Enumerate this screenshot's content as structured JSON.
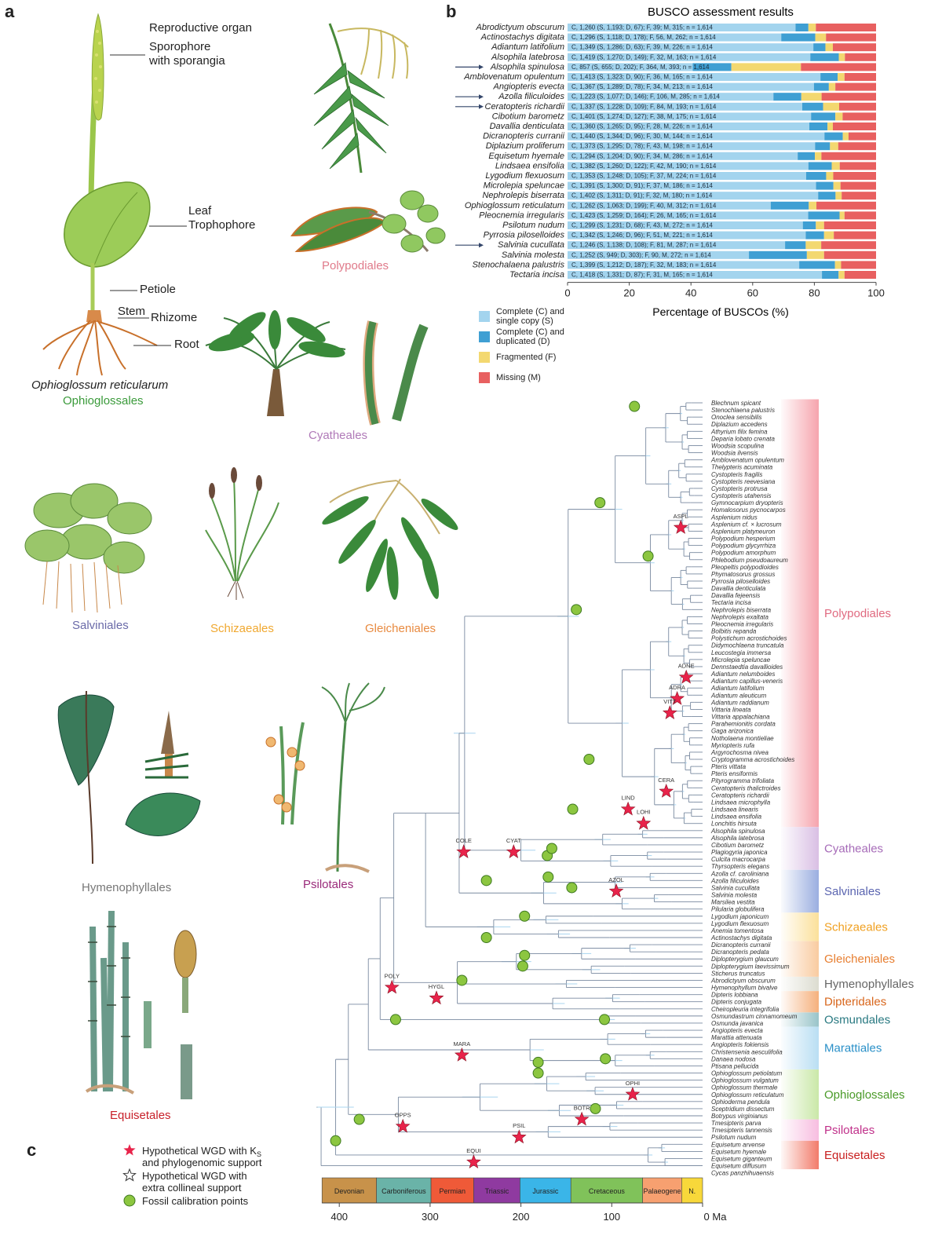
{
  "panels": {
    "a": "a",
    "b": "b",
    "c": "c"
  },
  "panel_a": {
    "annotations": {
      "reproductive": "Reproductive organ",
      "sporophore": "Sporophore",
      "sporangia": "with sporangia",
      "leaf": "Leaf",
      "trophophore": "Trophophore",
      "petiole": "Petiole",
      "stem": "Stem",
      "rhizome": "Rhizome",
      "root": "Root"
    },
    "species_name": "Ophioglossum reticularum",
    "orders": [
      {
        "name": "Ophioglossales",
        "color": "#3a9a3a"
      },
      {
        "name": "Polypodiales",
        "color": "#e07a8a"
      },
      {
        "name": "Cyatheales",
        "color": "#b07ab8"
      },
      {
        "name": "Salviniales",
        "color": "#6a6aa8"
      },
      {
        "name": "Schizaeales",
        "color": "#f0a830"
      },
      {
        "name": "Gleicheniales",
        "color": "#e88a40"
      },
      {
        "name": "Hymenophyllales",
        "color": "#777777"
      },
      {
        "name": "Psilotales",
        "color": "#9a2a7a"
      },
      {
        "name": "Equisetales",
        "color": "#c8202a"
      }
    ]
  },
  "chart_data": {
    "type": "bar",
    "orientation": "horizontal-stacked",
    "title": "BUSCO assessment results",
    "xlabel": "Percentage of BUSCOs (%)",
    "xlim": [
      0,
      100
    ],
    "xticks": [
      "0",
      "20",
      "40",
      "60",
      "80",
      "100"
    ],
    "total": 1614,
    "series": [
      {
        "name": "Complete (C) and single copy (S)",
        "color": "#a3d4ee"
      },
      {
        "name": "Complete (C) and duplicated (D)",
        "color": "#3f9fd3"
      },
      {
        "name": "Fragmented (F)",
        "color": "#f3d870"
      },
      {
        "name": "Missing (M)",
        "color": "#e86060"
      }
    ],
    "legend": [
      [
        "Complete (C) and",
        "single copy (S)"
      ],
      [
        "Complete (C) and",
        "duplicated (D)"
      ],
      [
        "Fragmented (F)",
        ""
      ],
      [
        "Missing (M)",
        ""
      ]
    ],
    "rows": [
      {
        "species": "Abrodictyum obscurum",
        "S": 1193,
        "D": 67,
        "F": 39,
        "M": 315,
        "label": "C, 1,260 (S, 1,193; D, 67); F, 39; M, 315; n = 1,614",
        "arrow": false
      },
      {
        "species": "Actinostachys digitata",
        "S": 1118,
        "D": 178,
        "F": 56,
        "M": 262,
        "label": "C, 1,296 (S, 1,118; D, 178); F, 56, M, 262; n = 1,614",
        "arrow": false
      },
      {
        "species": "Adiantum latifolium",
        "S": 1286,
        "D": 63,
        "F": 39,
        "M": 226,
        "label": "C, 1,349 (S, 1,286; D, 63); F, 39, M, 226; n = 1,614",
        "arrow": false
      },
      {
        "species": "Alsophila latebrosa",
        "S": 1270,
        "D": 149,
        "F": 32,
        "M": 163,
        "label": "C, 1,419 (S, 1,270; D, 149); F, 32, M, 163; n = 1,614",
        "arrow": false
      },
      {
        "species": "Alsophila spinulosa",
        "S": 655,
        "D": 202,
        "F": 364,
        "M": 393,
        "label": "C, 857 (S, 655; D, 202); F, 364, M, 393; n = 1,614",
        "arrow": true
      },
      {
        "species": "Amblovenatum opulentum",
        "S": 1323,
        "D": 90,
        "F": 36,
        "M": 165,
        "label": "C, 1,413 (S, 1,323; D, 90); F, 36, M, 165; n = 1,614",
        "arrow": false
      },
      {
        "species": "Angiopteris evecta",
        "S": 1289,
        "D": 78,
        "F": 34,
        "M": 213,
        "label": "C, 1,367 (S, 1,289; D, 78); F, 34, M, 213; n = 1,614",
        "arrow": false
      },
      {
        "species": "Azolla filiculoides",
        "S": 1077,
        "D": 146,
        "F": 106,
        "M": 285,
        "label": "C, 1,223 (S, 1,077; D, 146); F, 106, M, 285; n = 1,614",
        "arrow": true
      },
      {
        "species": "Ceratopteris richardii",
        "S": 1228,
        "D": 109,
        "F": 84,
        "M": 193,
        "label": "C, 1,337 (S, 1,228; D, 109); F, 84, M, 193; n = 1,614",
        "arrow": true
      },
      {
        "species": "Cibotium barometz",
        "S": 1274,
        "D": 127,
        "F": 38,
        "M": 175,
        "label": "C, 1,401 (S, 1,274; D, 127); F, 38, M, 175; n = 1,614",
        "arrow": false
      },
      {
        "species": "Davallia denticulata",
        "S": 1265,
        "D": 95,
        "F": 28,
        "M": 226,
        "label": "C, 1,360 (S, 1,265; D, 95); F, 28, M, 226; n = 1,614",
        "arrow": false
      },
      {
        "species": "Dicranopteris curranii",
        "S": 1344,
        "D": 96,
        "F": 30,
        "M": 144,
        "label": "C, 1,440 (S, 1,344; D, 96); F, 30, M, 144; n = 1,614",
        "arrow": false
      },
      {
        "species": "Diplazium proliferum",
        "S": 1295,
        "D": 78,
        "F": 43,
        "M": 198,
        "label": "C, 1,373 (S, 1,295; D, 78); F, 43, M, 198; n = 1,614",
        "arrow": false
      },
      {
        "species": "Equisetum hyemale",
        "S": 1204,
        "D": 90,
        "F": 34,
        "M": 286,
        "label": "C, 1,294 (S, 1,204; D, 90); F, 34, M, 286; n = 1,614",
        "arrow": false
      },
      {
        "species": "Lindsaea ensifolia",
        "S": 1260,
        "D": 122,
        "F": 42,
        "M": 190,
        "label": "C, 1,382 (S, 1,260; D, 122); F, 42, M, 190; n = 1,614",
        "arrow": false
      },
      {
        "species": "Lygodium flexuosum",
        "S": 1248,
        "D": 105,
        "F": 37,
        "M": 224,
        "label": "C, 1,353 (S, 1,248; D, 105); F, 37, M, 224; n = 1,614",
        "arrow": false
      },
      {
        "species": "Microlepia speluncae",
        "S": 1300,
        "D": 91,
        "F": 37,
        "M": 186,
        "label": "C, 1,391 (S, 1,300; D, 91); F, 37, M, 186; n = 1,614",
        "arrow": false
      },
      {
        "species": "Nephrolepis biserrata",
        "S": 1311,
        "D": 91,
        "F": 32,
        "M": 180,
        "label": "C, 1,402 (S, 1,311; D, 91); F, 32, M, 180; n = 1,614",
        "arrow": false
      },
      {
        "species": "Ophioglossum reticulatum",
        "S": 1063,
        "D": 199,
        "F": 40,
        "M": 312,
        "label": "C, 1,262 (S, 1,063; D, 199); F, 40, M, 312; n = 1,614",
        "arrow": false
      },
      {
        "species": "Pleocnemia irregularis",
        "S": 1259,
        "D": 164,
        "F": 26,
        "M": 165,
        "label": "C, 1,423 (S, 1,259; D, 164); F, 26, M, 165; n = 1,614",
        "arrow": false
      },
      {
        "species": "Psilotum nudum",
        "S": 1231,
        "D": 68,
        "F": 43,
        "M": 272,
        "label": "C, 1,299 (S, 1,231; D, 68); F, 43, M, 272; n = 1,614",
        "arrow": false
      },
      {
        "species": "Pyrrosia piloselloides",
        "S": 1246,
        "D": 96,
        "F": 51,
        "M": 221,
        "label": "C, 1,342 (S, 1,246; D, 96); F, 51, M, 221; n = 1,614",
        "arrow": false
      },
      {
        "species": "Salvinia cucullata",
        "S": 1138,
        "D": 108,
        "F": 81,
        "M": 287,
        "label": "C, 1,246 (S, 1,138; D, 108); F, 81, M, 287; n = 1,614",
        "arrow": true
      },
      {
        "species": "Salvinia molesta",
        "S": 949,
        "D": 303,
        "F": 90,
        "M": 272,
        "label": "C, 1,252 (S, 949; D, 303); F, 90, M, 272; n = 1,614",
        "arrow": false
      },
      {
        "species": "Stenochalaena palustris",
        "S": 1212,
        "D": 187,
        "F": 32,
        "M": 183,
        "label": "C, 1,399 (S, 1,212; D, 187); F, 32, M, 183; n = 1,614",
        "arrow": false
      },
      {
        "species": "Tectaria incisa",
        "S": 1331,
        "D": 87,
        "F": 31,
        "M": 165,
        "label": "C, 1,418 (S, 1,331; D, 87); F, 31, M, 165; n = 1,614",
        "arrow": false
      }
    ]
  },
  "panel_c": {
    "taxa": [
      "Blechnum spicant",
      "Stenochlaena palustris",
      "Onoclea sensibilis",
      "Diplazium accedens",
      "Athyrium filix femina",
      "Deparia lobato crenata",
      "Woodsia scopulina",
      "Woodsia ilvensis",
      "Amblovenatum opulentum",
      "Thelypteris acuminata",
      "Cystopteris fragilis",
      "Cystopteris reevesiana",
      "Cystopteris protrusa",
      "Cystopteris utahensis",
      "Gymnocarpium dryopteris",
      "Homalosorus pycnocarpos",
      "Asplenium nidus",
      "Asplenium cf. × lucrosum",
      "Asplenium platyneuron",
      "Polypodium hesperium",
      "Polypodium glycyrrhiza",
      "Polypodium amorphum",
      "Phlebodium pseudoaureum",
      "Pleopeltis polypodioides",
      "Phymatosorus grossus",
      "Pyrrosia piloselloides",
      "Davallia denticulata",
      "Davallia fejeensis",
      "Tectaria incisa",
      "Nephrolepis biserrata",
      "Nephrolepis exaltata",
      "Pleocnemia irregularis",
      "Bolbitis repanda",
      "Polystichum acrostichoides",
      "Didymochlaena truncatula",
      "Leucostegia immersa",
      "Microlepia speluncae",
      "Dennstaedtia davallioides",
      "Adiantum nelumboides",
      "Adiantum capillus-veneris",
      "Adiantum latifolium",
      "Adiantum aleuticum",
      "Adiantum raddianum",
      "Vittaria lineata",
      "Vittaria appalachiana",
      "Parahemionitis cordata",
      "Gaga arizonica",
      "Notholaena montieliae",
      "Myriopteris rufa",
      "Argyrochosma nivea",
      "Cryptogramma acrostichoides",
      "Pteris vittata",
      "Pteris ensiformis",
      "Pityrogramma trifoliata",
      "Ceratopteris thalictroides",
      "Ceratopteris richardii",
      "Lindsaea microphylla",
      "Lindsaea linearis",
      "Lindsaea ensifolia",
      "Lonchitis hirsuta",
      "Alsophila spinulosa",
      "Alsophila latebrosa",
      "Cibotium barometz",
      "Plagiogyria japonica",
      "Culcita macrocarpa",
      "Thyrsopteris elegans",
      "Azolla cf. caroliniana",
      "Azolla filiculoides",
      "Salvinia cucullata",
      "Salvinia molesta",
      "Marsilea vestita",
      "Pilularia globulifera",
      "Lygodium japonicum",
      "Lygodium flexuosum",
      "Anemia tomentosa",
      "Actinostachys digitata",
      "Dicranopteris curranii",
      "Dicranopteris pedata",
      "Diplopterygium glaucum",
      "Diplopterygium laevissimum",
      "Sticherus truncatus",
      "Abrodictyum obscurum",
      "Hymenophyllum bivalve",
      "Dipteris lobbiana",
      "Dipteris conjugata",
      "Cheiropleuria integrifolia",
      "Osmundastrum cinnamomeum",
      "Osmunda javanica",
      "Angiopteris evecta",
      "Marattia attenuata",
      "Angiopteris fokiensis",
      "Christensenia aesculifolia",
      "Danaea nodosa",
      "Ptisana pellucida",
      "Ophioglossum petiolatum",
      "Ophioglossum vulgatum",
      "Ophioglossum thermale",
      "Ophioglossum reticulatum",
      "Ophioderma pendula",
      "Sceptridium dissectum",
      "Botrypus virginianus",
      "Tmesipteris parva",
      "Tmesipteris tannensis",
      "Psilotum nudum",
      "Equisetum arvense",
      "Equisetum hyemale",
      "Equisetum giganteum",
      "Equisetum diffusum",
      "Cycas panzhihuaensis"
    ],
    "clades": [
      {
        "name": "Polypodiales",
        "from": 0,
        "to": 59,
        "color": "#f6a4ad",
        "text": "#e06a80"
      },
      {
        "name": "Cyatheales",
        "from": 60,
        "to": 65,
        "color": "#d9bfe4",
        "text": "#a66bb8"
      },
      {
        "name": "Salviniales",
        "from": 66,
        "to": 71,
        "color": "#9aaee0",
        "text": "#5a64b0"
      },
      {
        "name": "Schizaeales",
        "from": 72,
        "to": 75,
        "color": "#fbe09a",
        "text": "#f0a020"
      },
      {
        "name": "Gleicheniales",
        "from": 76,
        "to": 80,
        "color": "#f9cba0",
        "text": "#e77e30"
      },
      {
        "name": "Hymenophyllales",
        "from": 81,
        "to": 82,
        "color": "#dcdcd0",
        "text": "#666666"
      },
      {
        "name": "Dipteridales",
        "from": 83,
        "to": 85,
        "color": "#f5b07c",
        "text": "#d8661c"
      },
      {
        "name": "Osmundales",
        "from": 86,
        "to": 87,
        "color": "#99c4c9",
        "text": "#2a7a82"
      },
      {
        "name": "Marattiales",
        "from": 88,
        "to": 93,
        "color": "#b9def3",
        "text": "#2a90c8"
      },
      {
        "name": "Ophioglossales",
        "from": 94,
        "to": 100,
        "color": "#cae8a8",
        "text": "#4a9a28"
      },
      {
        "name": "Psilotales",
        "from": 101,
        "to": 103,
        "color": "#f7bde0",
        "text": "#c0308a"
      },
      {
        "name": "Equisetales",
        "from": 104,
        "to": 107,
        "color": "#f27b6a",
        "text": "#c82020"
      }
    ],
    "wgd": [
      {
        "label": "ASPL",
        "age": 24,
        "taxon": 17.5
      },
      {
        "label": "ADNE",
        "age": 18,
        "taxon": 38.5
      },
      {
        "label": "ADRA",
        "age": 28,
        "taxon": 41.5
      },
      {
        "label": "VITT",
        "age": 36,
        "taxon": 43.5
      },
      {
        "label": "CERA",
        "age": 40,
        "taxon": 54.5
      },
      {
        "label": "LIND",
        "age": 82,
        "taxon": 57
      },
      {
        "label": "LOHI",
        "age": 65,
        "taxon": 59
      },
      {
        "label": "COLE",
        "age": 263,
        "taxon": 63
      },
      {
        "label": "CYAT",
        "age": 208,
        "taxon": 63
      },
      {
        "label": "AZOL",
        "age": 95,
        "taxon": 68.5
      },
      {
        "label": "POLY",
        "age": 342,
        "taxon": 82
      },
      {
        "label": "HYGL",
        "age": 293,
        "taxon": 83.5
      },
      {
        "label": "MARA",
        "age": 265,
        "taxon": 91.5
      },
      {
        "label": "OPHI",
        "age": 77,
        "taxon": 97
      },
      {
        "label": "BOTR",
        "age": 133,
        "taxon": 100.5
      },
      {
        "label": "OPPS",
        "age": 330,
        "taxon": 101.5
      },
      {
        "label": "PSIL",
        "age": 202,
        "taxon": 103
      },
      {
        "label": "EQUI",
        "age": 252,
        "taxon": 106.5
      }
    ],
    "fossils": [
      {
        "age": 404,
        "taxon": 103.5
      },
      {
        "age": 378,
        "taxon": 100.5
      },
      {
        "age": 338,
        "taxon": 86.5
      },
      {
        "age": 265,
        "taxon": 81
      },
      {
        "age": 238,
        "taxon": 75
      },
      {
        "age": 238,
        "taxon": 67
      },
      {
        "age": 198,
        "taxon": 79
      },
      {
        "age": 196,
        "taxon": 72
      },
      {
        "age": 196,
        "taxon": 77.5
      },
      {
        "age": 171,
        "taxon": 63.5
      },
      {
        "age": 170,
        "taxon": 66.5
      },
      {
        "age": 166,
        "taxon": 62.5
      },
      {
        "age": 143,
        "taxon": 57
      },
      {
        "age": 144,
        "taxon": 68
      },
      {
        "age": 125,
        "taxon": 50
      },
      {
        "age": 139,
        "taxon": 29
      },
      {
        "age": 113,
        "taxon": 14
      },
      {
        "age": 60,
        "taxon": 21.5
      },
      {
        "age": 75,
        "taxon": 0.5
      },
      {
        "age": 108,
        "taxon": 86.5
      },
      {
        "age": 107,
        "taxon": 92
      },
      {
        "age": 181,
        "taxon": 92.5
      },
      {
        "age": 181,
        "taxon": 94
      },
      {
        "age": 118,
        "taxon": 99
      }
    ],
    "periods": [
      {
        "name": "Devonian",
        "from": 419,
        "to": 359,
        "color": "#c8924a"
      },
      {
        "name": "Carboniferous",
        "from": 359,
        "to": 299,
        "color": "#6ab3a8"
      },
      {
        "name": "Permian",
        "from": 299,
        "to": 252,
        "color": "#ef5a38"
      },
      {
        "name": "Triassic",
        "from": 252,
        "to": 201,
        "color": "#8f3aa0"
      },
      {
        "name": "Jurassic",
        "from": 201,
        "to": 145,
        "color": "#3ab5e8"
      },
      {
        "name": "Cretaceous",
        "from": 145,
        "to": 66,
        "color": "#80c25a"
      },
      {
        "name": "Palaeogene",
        "from": 66,
        "to": 23,
        "color": "#f7a070"
      },
      {
        "name": "N.",
        "from": 23,
        "to": 0,
        "color": "#f8d83a"
      }
    ],
    "axis_ticks": [
      "400",
      "300",
      "200",
      "100",
      "0 Ma"
    ],
    "axis_values": [
      400,
      300,
      200,
      100,
      0
    ],
    "legend": [
      {
        "text1": "Hypothetical WGD with K",
        "sub": "S",
        "text2": "and phylogenomic support"
      },
      {
        "text1": "Hypothetical WGD with",
        "sub": "",
        "text2": "extra collineal support"
      },
      {
        "text1": "Fossil calibration points",
        "sub": "",
        "text2": ""
      }
    ]
  }
}
